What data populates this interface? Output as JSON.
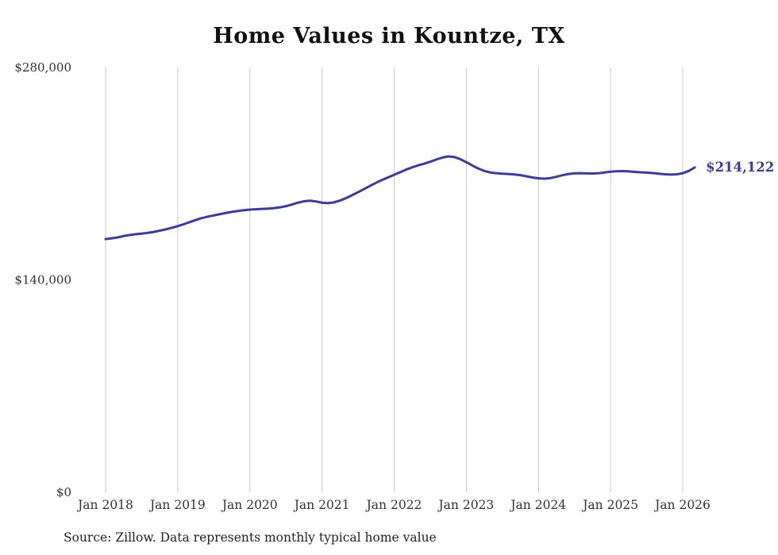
{
  "page": {
    "title": "Home Values in Kountze, TX",
    "source_note": "Source: Zillow. Data represents monthly typical home value"
  },
  "chart_data": {
    "type": "line",
    "title": "Home Values in Kountze, TX",
    "series_name": "Monthly typical home value",
    "x_start": "Jan 2018",
    "x_interval": "month",
    "x_tick_labels": [
      "Jan 2018",
      "Jan 2019",
      "Jan 2020",
      "Jan 2021",
      "Jan 2022",
      "Jan 2023",
      "Jan 2024",
      "Jan 2025",
      "Jan 2026"
    ],
    "y_ticks": [
      {
        "value": 0,
        "label": "$0"
      },
      {
        "value": 140000,
        "label": "$140,000"
      },
      {
        "value": 280000,
        "label": "$280,000"
      }
    ],
    "ylim": [
      0,
      280000
    ],
    "grid": "vertical",
    "legend": "none",
    "line_color": "#3a3aad",
    "grid_color": "#c9c9c9",
    "axis_text_color": "#333333",
    "end_label": "$214,122",
    "end_value": 214122,
    "values": [
      166900,
      167400,
      168000,
      168900,
      169600,
      170100,
      170500,
      171000,
      171600,
      172400,
      173300,
      174300,
      175400,
      176700,
      178100,
      179500,
      180700,
      181700,
      182500,
      183300,
      184100,
      184800,
      185400,
      185900,
      186300,
      186600,
      186800,
      187000,
      187300,
      187800,
      188600,
      189700,
      190900,
      191800,
      192200,
      191700,
      190900,
      190600,
      191100,
      192300,
      193900,
      195800,
      197800,
      199900,
      202000,
      204000,
      205900,
      207600,
      209300,
      211000,
      212700,
      214200,
      215500,
      216600,
      217900,
      219300,
      220600,
      221400,
      221000,
      219600,
      217600,
      215400,
      213400,
      211800,
      210800,
      210300,
      210000,
      209800,
      209500,
      209000,
      208300,
      207500,
      206900,
      206700,
      207100,
      208000,
      209000,
      209800,
      210200,
      210300,
      210200,
      210100,
      210300,
      210800,
      211300,
      211600,
      211700,
      211500,
      211200,
      210900,
      210700,
      210400,
      210000,
      209600,
      209400,
      209600,
      210300,
      211800,
      214122
    ]
  }
}
